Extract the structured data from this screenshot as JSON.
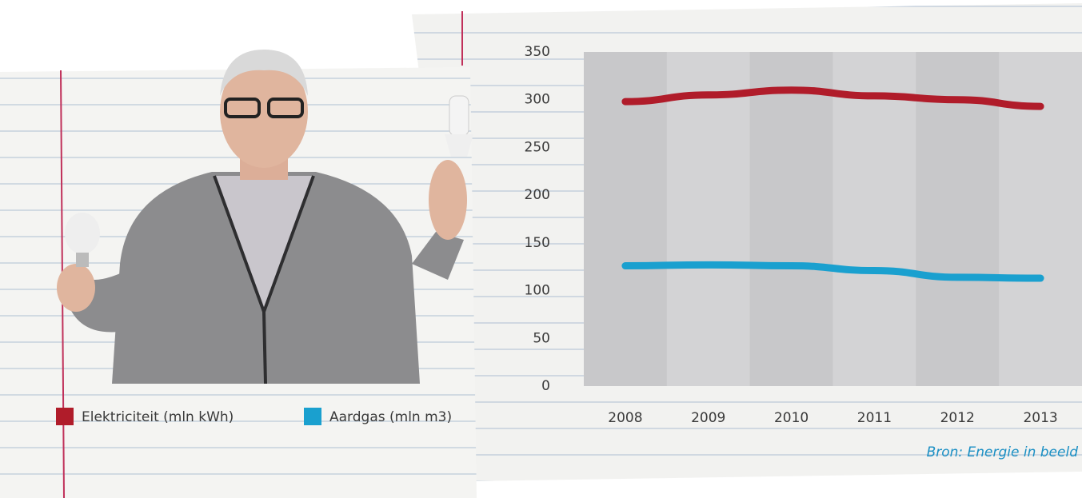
{
  "chart_data": {
    "type": "line",
    "categories": [
      "2008",
      "2009",
      "2010",
      "2011",
      "2012",
      "2013"
    ],
    "series": [
      {
        "name": "Elektriciteit (mln kWh)",
        "color": "#b01c2a",
        "values": [
          298,
          305,
          310,
          304,
          300,
          293
        ]
      },
      {
        "name": "Aardgas (mln m3)",
        "color": "#1aa0cf",
        "values": [
          126,
          127,
          126,
          121,
          114,
          113
        ]
      }
    ],
    "ylim": [
      0,
      350
    ],
    "yticks": [
      0,
      50,
      100,
      150,
      200,
      250,
      300,
      350
    ],
    "grid": false,
    "source": "Bron: Energie in beeld"
  }
}
